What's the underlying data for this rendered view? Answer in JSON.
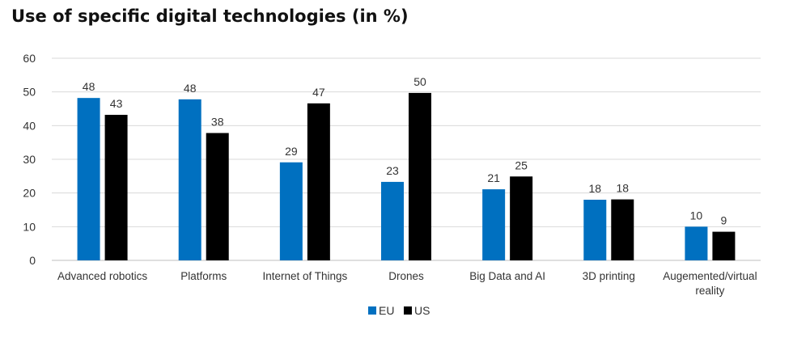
{
  "title": "Use of specific digital technologies (in %)",
  "colors": {
    "eu": "#0070C0",
    "us": "#000000",
    "grid": "#d9d9d9",
    "text": "#333333"
  },
  "chart_data": {
    "type": "bar",
    "title": "Use of specific digital technologies (in %)",
    "xlabel": "",
    "ylabel": "",
    "ylim": [
      0,
      60
    ],
    "yticks": [
      0,
      10,
      20,
      30,
      40,
      50,
      60
    ],
    "grid": true,
    "legend_position": "bottom",
    "categories": [
      [
        "Advanced robotics"
      ],
      [
        "Platforms"
      ],
      [
        "Internet of Things"
      ],
      [
        "Drones"
      ],
      [
        "Big Data and AI"
      ],
      [
        "3D printing"
      ],
      [
        "Augemented/virtual",
        "reality"
      ]
    ],
    "series": [
      {
        "name": "EU",
        "color": "#0070C0",
        "values": [
          48,
          48,
          29,
          23,
          21,
          18,
          10
        ],
        "heights": [
          48.2,
          47.8,
          29.1,
          23.3,
          21.1,
          18.0,
          10.0
        ]
      },
      {
        "name": "US",
        "color": "#000000",
        "values": [
          43,
          38,
          47,
          50,
          25,
          18,
          9
        ],
        "heights": [
          43.2,
          37.8,
          46.6,
          49.7,
          24.9,
          18.1,
          8.5
        ]
      }
    ]
  }
}
